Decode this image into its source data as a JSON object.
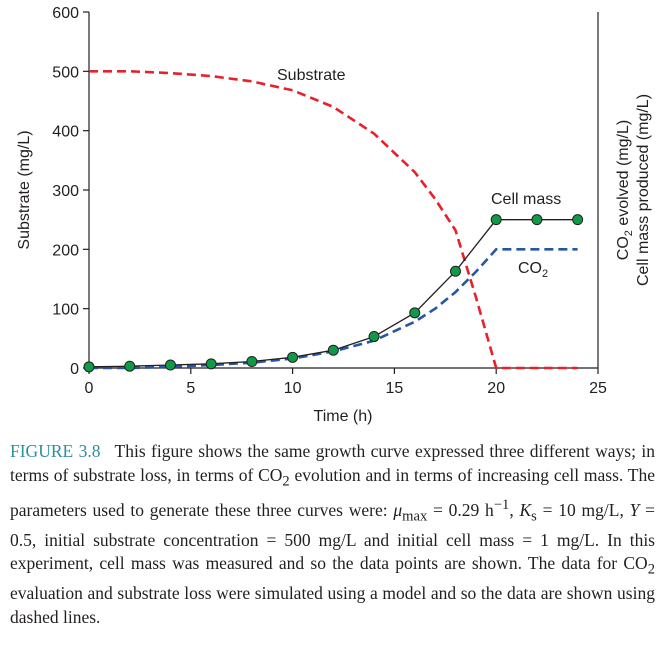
{
  "chart_data": {
    "type": "line",
    "x_axis": {
      "label": "Time (h)",
      "ticks": [
        0,
        5,
        10,
        15,
        20,
        25
      ],
      "range": [
        0,
        25
      ]
    },
    "y_axis_left": {
      "label": "Substrate (mg/L)",
      "ticks": [
        0,
        100,
        200,
        300,
        400,
        500,
        600
      ],
      "range": [
        0,
        600
      ]
    },
    "y_axis_right": {
      "label_line1": "CO",
      "label_line1_sub": "2",
      "label_line1_rest": " evolved (mg/L)",
      "label_line2": "Cell mass produced (mg/L)"
    },
    "grid": false,
    "series": [
      {
        "name": "Substrate",
        "style": "dashed",
        "color": "#e8202a",
        "x": [
          0,
          2,
          4,
          6,
          8,
          10,
          12,
          14,
          16,
          17,
          18,
          19,
          20,
          24
        ],
        "y": [
          500,
          500,
          497,
          492,
          483,
          468,
          440,
          395,
          330,
          285,
          232,
          120,
          0,
          0
        ]
      },
      {
        "name": "CO",
        "name_sub": "2",
        "style": "dashed",
        "color": "#2557a6",
        "x": [
          0,
          2,
          4,
          6,
          8,
          10,
          12,
          14,
          16,
          17,
          18,
          19,
          20,
          24
        ],
        "y": [
          0,
          0,
          2,
          5,
          9,
          16,
          28,
          46,
          78,
          100,
          128,
          162,
          200,
          200
        ]
      },
      {
        "name": "Cell mass",
        "style": "solid-markers",
        "color": "#231f20",
        "marker_color": "#0f9a48",
        "x": [
          0,
          2,
          4,
          6,
          8,
          10,
          12,
          14,
          16,
          18,
          20,
          22,
          24
        ],
        "y": [
          2,
          3,
          5,
          7,
          11,
          18,
          30,
          53,
          93,
          163,
          250,
          250,
          250
        ]
      }
    ]
  },
  "caption": {
    "label": "FIGURE 3.8",
    "t1": "This figure shows the same growth curve expressed three different ways; in terms of substrate loss, in terms of CO",
    "t1_sub": "2",
    "t2": " evolution and in terms of increasing cell mass. The parameters used to generate these three curves were: ",
    "mu": "μ",
    "mu_sub": "max",
    "t3": " = 0.29 h",
    "t3_sup": "−1",
    "t4": ", ",
    "ks": "K",
    "ks_sub": "s",
    "t5": " = 10 mg/L, ",
    "y_sym": "Y",
    "t6": " = 0.5, initial substrate concentration = 500 mg/L and initial cell mass = 1 mg/L. In this experiment, cell mass was measured and so the data points are shown. The data for CO",
    "t6_sub": "2",
    "t7": " evaluation and substrate loss were simulated using a model and so the data are shown using dashed lines."
  }
}
